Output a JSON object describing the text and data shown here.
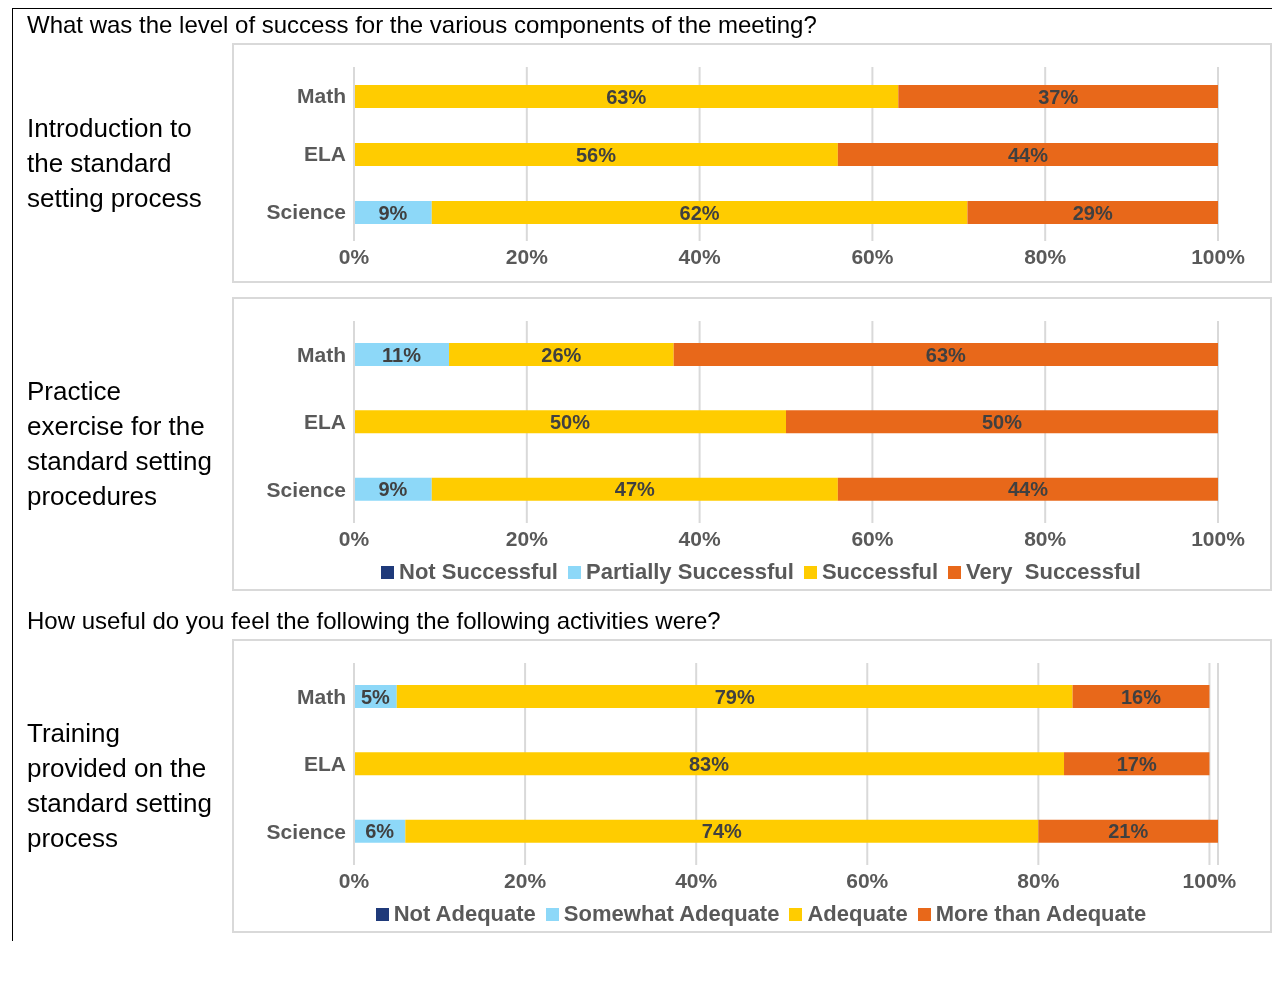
{
  "chart_data": [
    {
      "type": "bar",
      "orientation": "horizontal",
      "stacked": true,
      "title": "What was the level of success for the various components of the meeting?",
      "ylabel": "Introduction to the standard setting process",
      "categories": [
        "Math",
        "ELA",
        "Science"
      ],
      "series": [
        {
          "color": "#8dd8f8",
          "values": [
            null,
            null,
            9
          ],
          "value_labels": [
            null,
            null,
            "9%"
          ]
        },
        {
          "color": "#ffcc00",
          "values": [
            63,
            56,
            62
          ],
          "value_labels": [
            "63%",
            "56%",
            "62%"
          ]
        },
        {
          "color": "#e8681a",
          "values": [
            37,
            44,
            29
          ],
          "value_labels": [
            "37%",
            "44%",
            "29%"
          ]
        }
      ],
      "xlim": [
        0,
        100
      ],
      "xticks": [
        {
          "value": 0,
          "label": "0%"
        },
        {
          "value": 20,
          "label": "20%"
        },
        {
          "value": 40,
          "label": "40%"
        },
        {
          "value": 60,
          "label": "60%"
        },
        {
          "value": 80,
          "label": "80%"
        },
        {
          "value": 100,
          "label": "100%"
        }
      ],
      "grid": "x",
      "legend": false
    },
    {
      "type": "bar",
      "orientation": "horizontal",
      "stacked": true,
      "ylabel": "Practice exercise for the standard setting procedures",
      "categories": [
        "Math",
        "ELA",
        "Science"
      ],
      "series": [
        {
          "name": "Not Successful",
          "color": "#1f3a7a",
          "values": [
            null,
            null,
            null
          ],
          "value_labels": [
            null,
            null,
            null
          ]
        },
        {
          "name": "Partially Successful",
          "color": "#8dd8f8",
          "values": [
            11,
            null,
            9
          ],
          "value_labels": [
            "11%",
            null,
            "9%"
          ]
        },
        {
          "name": "Successful",
          "color": "#ffcc00",
          "values": [
            26,
            50,
            47
          ],
          "value_labels": [
            "26%",
            "50%",
            "47%"
          ]
        },
        {
          "name": "Very  Successful",
          "color": "#e8681a",
          "values": [
            63,
            50,
            44
          ],
          "value_labels": [
            "63%",
            "50%",
            "44%"
          ]
        }
      ],
      "xlim": [
        0,
        100
      ],
      "xticks": [
        {
          "value": 0,
          "label": "0%"
        },
        {
          "value": 20,
          "label": "20%"
        },
        {
          "value": 40,
          "label": "40%"
        },
        {
          "value": 60,
          "label": "60%"
        },
        {
          "value": 80,
          "label": "80%"
        },
        {
          "value": 100,
          "label": "100%"
        }
      ],
      "grid": "x",
      "legend": "bottom"
    },
    {
      "type": "bar",
      "orientation": "horizontal",
      "stacked": true,
      "title": "How useful do you feel the following the following activities were?",
      "ylabel": "Training provided on the standard setting process",
      "categories": [
        "Math",
        "ELA",
        "Science"
      ],
      "series": [
        {
          "name": "Not Adequate",
          "color": "#1f3a7a",
          "values": [
            null,
            null,
            null
          ],
          "value_labels": [
            null,
            null,
            null
          ]
        },
        {
          "name": "Somewhat Adequate",
          "color": "#8dd8f8",
          "values": [
            5,
            null,
            6
          ],
          "value_labels": [
            "5%",
            null,
            "6%"
          ]
        },
        {
          "name": "Adequate",
          "color": "#ffcc00",
          "values": [
            79,
            83,
            74
          ],
          "value_labels": [
            "79%",
            "83%",
            "74%"
          ]
        },
        {
          "name": "More than Adequate",
          "color": "#e8681a",
          "values": [
            16,
            17,
            21
          ],
          "value_labels": [
            "16%",
            "17%",
            "21%"
          ]
        }
      ],
      "xlim": [
        0,
        101
      ],
      "xticks": [
        {
          "value": 0,
          "label": "0%"
        },
        {
          "value": 20,
          "label": "20%"
        },
        {
          "value": 40,
          "label": "40%"
        },
        {
          "value": 60,
          "label": "60%"
        },
        {
          "value": 80,
          "label": "80%"
        },
        {
          "value": 100,
          "label": "100%"
        }
      ],
      "grid": "x",
      "legend": "bottom"
    }
  ]
}
